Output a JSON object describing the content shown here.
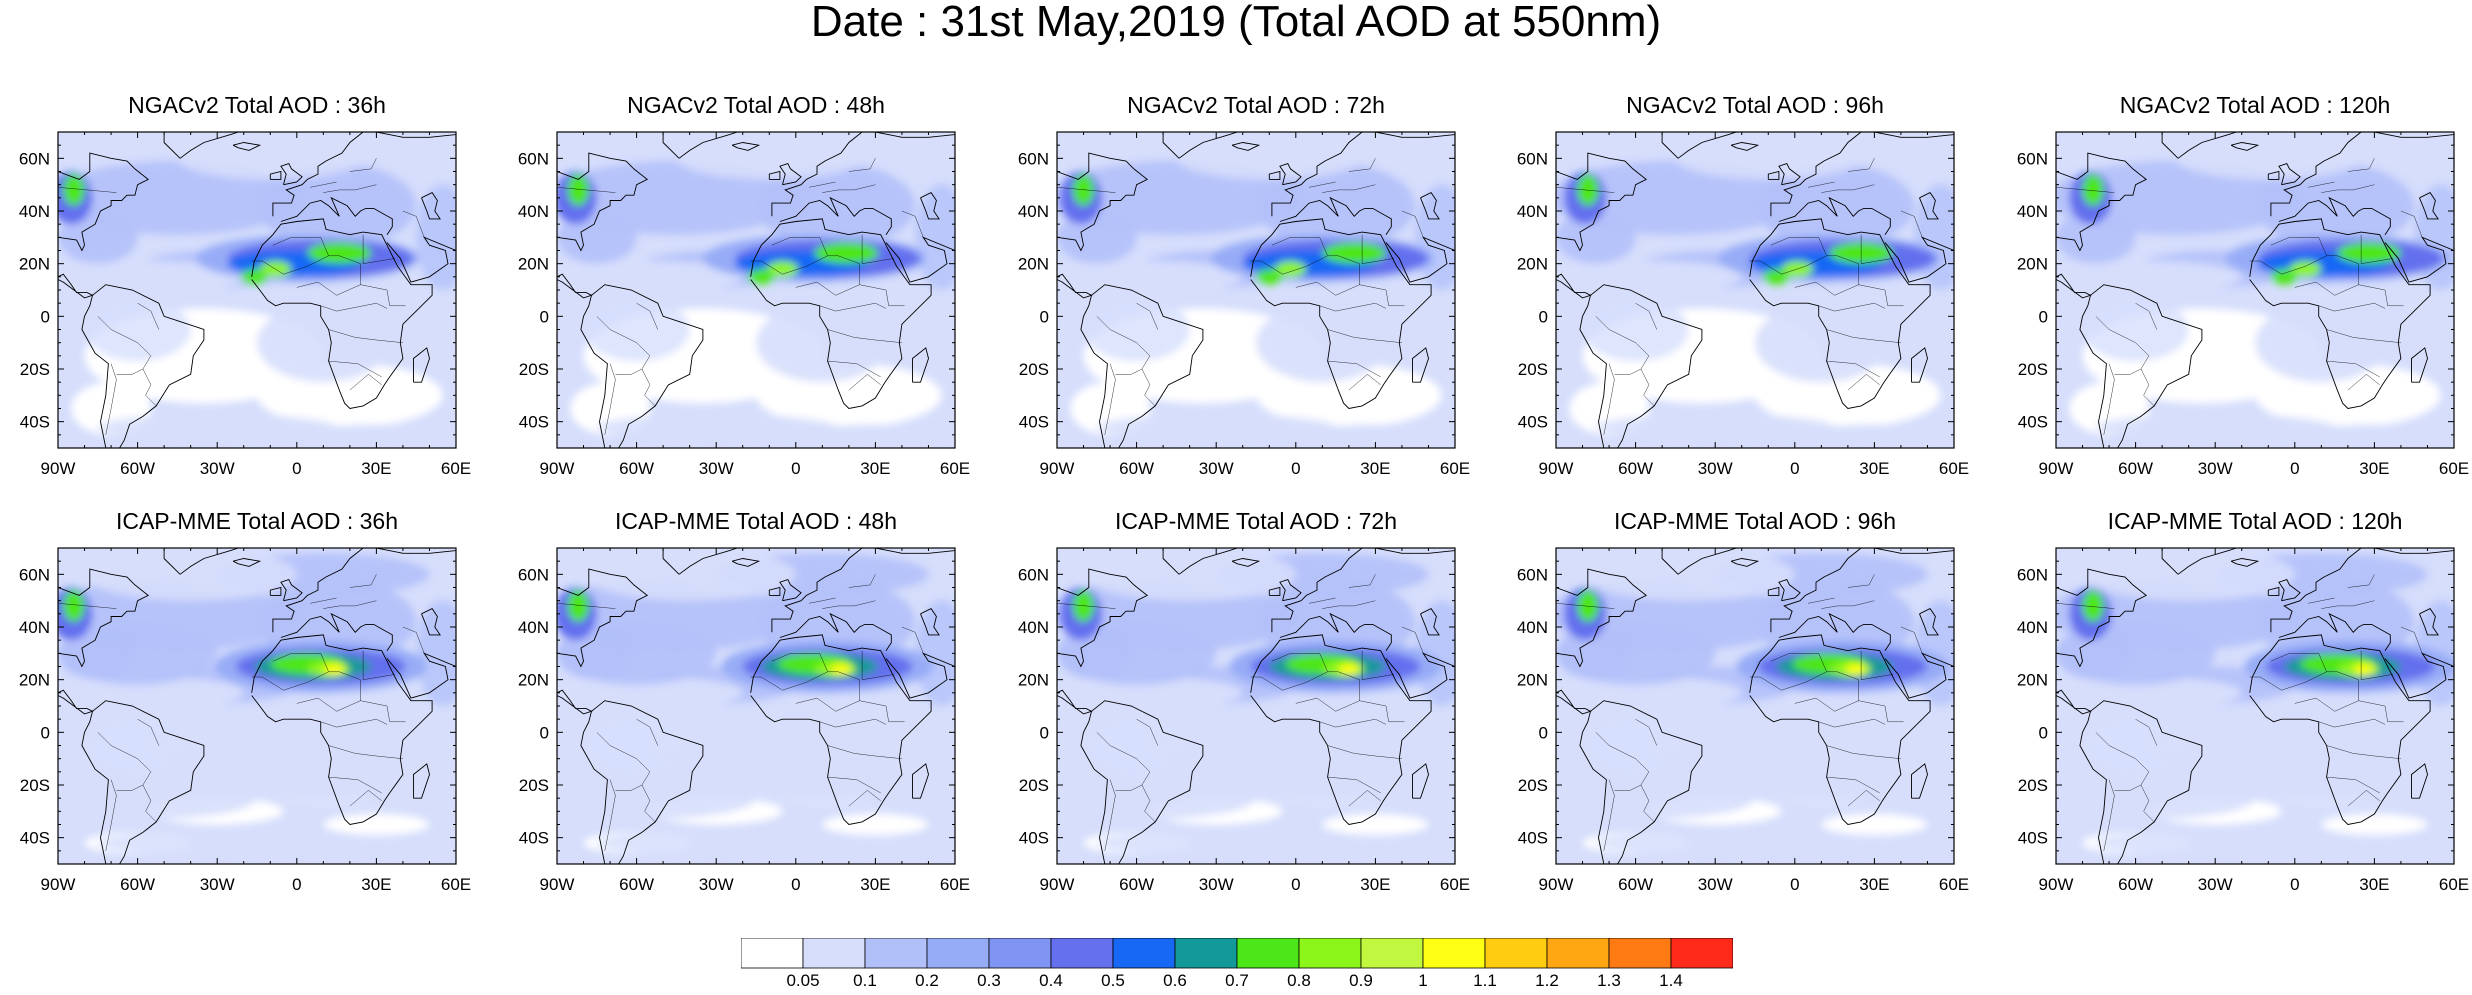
{
  "title": "Date : 31st May,2019 (Total AOD at 550nm)",
  "axes": {
    "lon_ticks": [
      "90W",
      "60W",
      "30W",
      "0",
      "30E",
      "60E"
    ],
    "lat_ticks": [
      "60N",
      "40N",
      "20N",
      "0",
      "20S",
      "40S"
    ],
    "lon_range": [
      -90,
      60
    ],
    "lat_range": [
      -50,
      70
    ]
  },
  "panels": [
    {
      "title": "NGACv2 Total AOD : 36h",
      "model": "NGACv2",
      "lead": 36
    },
    {
      "title": "NGACv2 Total AOD : 48h",
      "model": "NGACv2",
      "lead": 48
    },
    {
      "title": "NGACv2 Total AOD : 72h",
      "model": "NGACv2",
      "lead": 72
    },
    {
      "title": "NGACv2 Total AOD : 96h",
      "model": "NGACv2",
      "lead": 96
    },
    {
      "title": "NGACv2 Total AOD : 120h",
      "model": "NGACv2",
      "lead": 120
    },
    {
      "title": "ICAP-MME Total AOD : 36h",
      "model": "ICAP-MME",
      "lead": 36
    },
    {
      "title": "ICAP-MME Total AOD : 48h",
      "model": "ICAP-MME",
      "lead": 48
    },
    {
      "title": "ICAP-MME Total AOD : 72h",
      "model": "ICAP-MME",
      "lead": 72
    },
    {
      "title": "ICAP-MME Total AOD : 96h",
      "model": "ICAP-MME",
      "lead": 96
    },
    {
      "title": "ICAP-MME Total AOD : 120h",
      "model": "ICAP-MME",
      "lead": 120
    }
  ],
  "colorbar": {
    "labels": [
      "0.05",
      "0.1",
      "0.2",
      "0.3",
      "0.4",
      "0.5",
      "0.6",
      "0.7",
      "0.8",
      "0.9",
      "1",
      "1.1",
      "1.2",
      "1.3",
      "1.4"
    ],
    "colors": [
      "#ffffff",
      "#d6defc",
      "#b2c0fa",
      "#97acf7",
      "#7f94f3",
      "#6470ee",
      "#1768f5",
      "#14999a",
      "#4de619",
      "#8cf51a",
      "#c2f740",
      "#ffff14",
      "#ffcc12",
      "#ffa712",
      "#ff7a12",
      "#ff2a1a"
    ]
  }
}
